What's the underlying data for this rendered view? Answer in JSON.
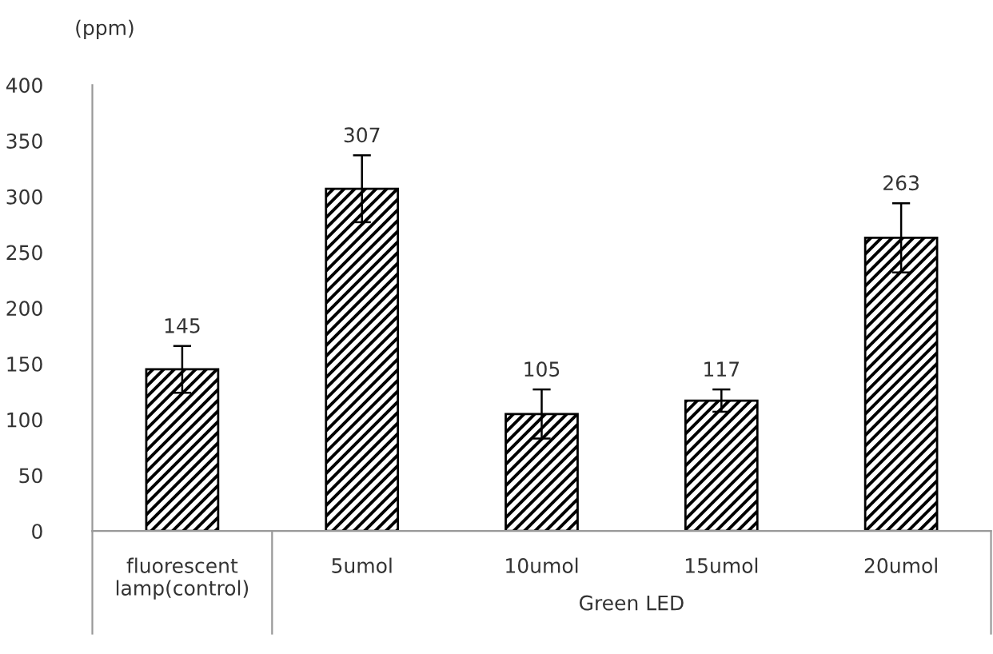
{
  "chart_data": {
    "type": "bar",
    "ylabel": "(ppm)",
    "categories": [
      "fluorescent lamp(control)",
      "5umol",
      "10umol",
      "15umol",
      "20umol"
    ],
    "values": [
      145,
      307,
      105,
      117,
      263
    ],
    "errors": [
      21,
      30,
      22,
      10,
      31
    ],
    "color": "#000000",
    "data_labels": true,
    "ylim": [
      0,
      400
    ],
    "yticks": [
      0,
      50,
      100,
      150,
      200,
      250,
      300,
      350,
      400
    ],
    "grid": false,
    "legend": false,
    "annotations": [
      "Green LED"
    ]
  }
}
